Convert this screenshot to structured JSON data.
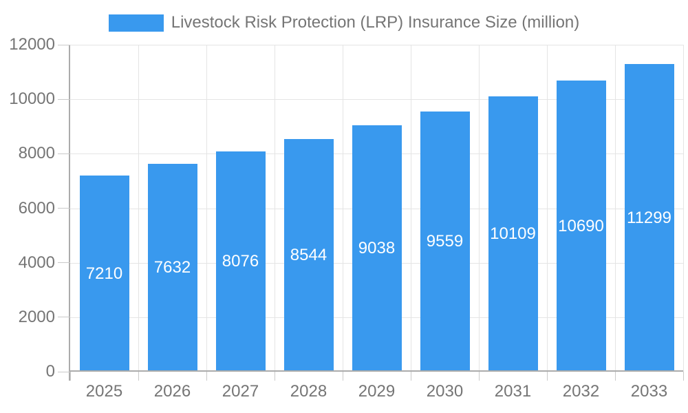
{
  "chart_data": {
    "type": "bar",
    "title": "Livestock Risk Protection (LRP) Insurance Size (million)",
    "categories": [
      "2025",
      "2026",
      "2027",
      "2028",
      "2029",
      "2030",
      "2031",
      "2032",
      "2033"
    ],
    "values": [
      7210,
      7632,
      8076,
      8544,
      9038,
      9559,
      10109,
      10690,
      11299
    ],
    "xlabel": "",
    "ylabel": "",
    "ylim": [
      0,
      12000
    ],
    "yticks": [
      0,
      2000,
      4000,
      6000,
      8000,
      10000,
      12000
    ],
    "grid": true,
    "legend_position": "top",
    "bar_value_labels": "centered-white"
  },
  "colors": {
    "bar": "#3999EE",
    "bar_label": "#FFFFFF",
    "axis_text": "#757575",
    "grid_line": "#E4E4E4",
    "tick_line": "#C9C9C9",
    "axis_line": "#ABABAB",
    "background": "#FFFFFF"
  }
}
